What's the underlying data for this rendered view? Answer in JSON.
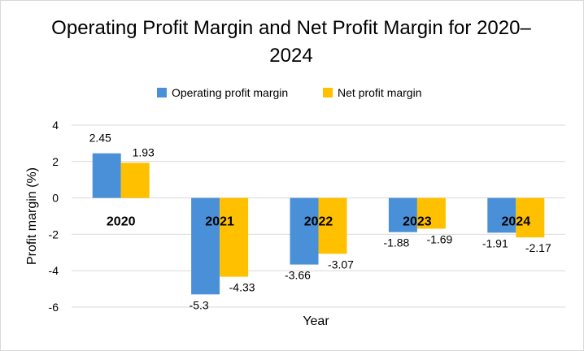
{
  "chart_data": {
    "type": "bar",
    "title": "Operating Profit Margin and Net Profit Margin for 2020–2024",
    "xlabel": "Year",
    "ylabel": "Profit margin (%)",
    "categories": [
      "2020",
      "2021",
      "2022",
      "2023",
      "2024"
    ],
    "series": [
      {
        "name": "Operating profit margin",
        "color": "#4a90d9",
        "values": [
          2.45,
          -5.3,
          -3.66,
          -1.88,
          -1.91
        ]
      },
      {
        "name": "Net profit margin",
        "color": "#ffc000",
        "values": [
          1.93,
          -4.33,
          -3.07,
          -1.69,
          -2.17
        ]
      }
    ],
    "ylim": [
      -6,
      4
    ],
    "yticks": [
      4,
      2,
      0,
      -2,
      -4,
      -6
    ],
    "grid": true,
    "legend": "top"
  }
}
